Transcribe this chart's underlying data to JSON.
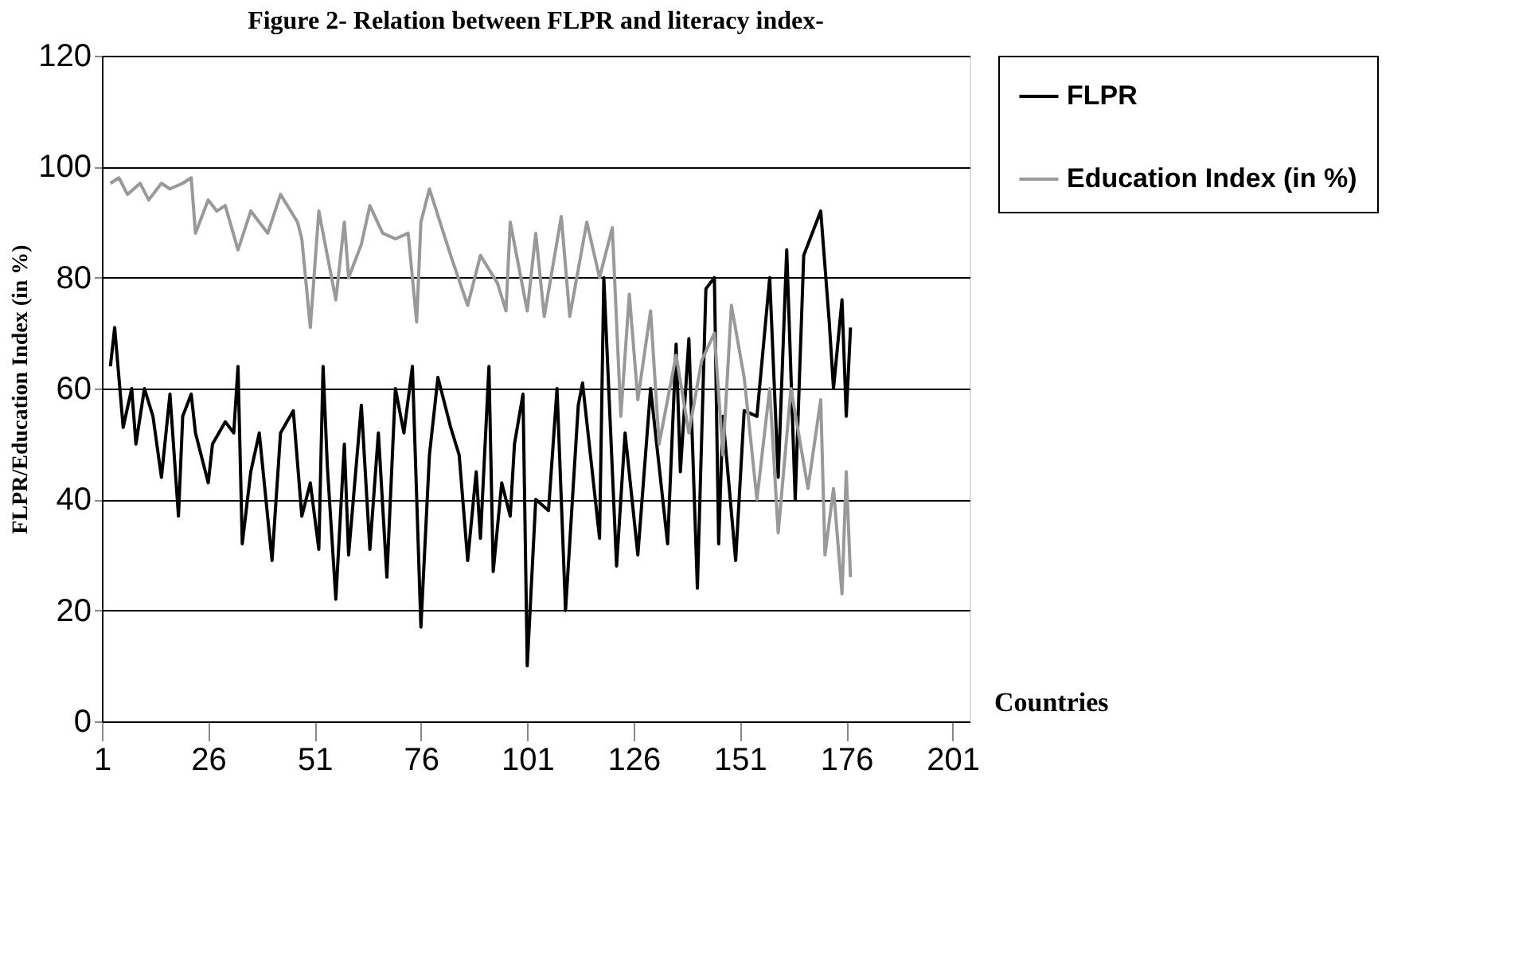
{
  "chart_data": {
    "type": "line",
    "title": "Figure 2- Relation between FLPR and literacy index-",
    "xlabel": "Countries",
    "ylabel": "FLPR/Education Index (in %)",
    "xlim": [
      1,
      205
    ],
    "xticks": [
      1,
      26,
      51,
      76,
      101,
      126,
      151,
      176,
      201
    ],
    "ylim": [
      0,
      120
    ],
    "yticks": [
      0,
      20,
      40,
      60,
      80,
      100,
      120
    ],
    "grid": "y",
    "legend": "right",
    "marker": "none",
    "line_style": "solid",
    "series": [
      {
        "name": "FLPR",
        "color": "#000000",
        "x": [
          3,
          4,
          6,
          8,
          9,
          11,
          13,
          15,
          17,
          19,
          20,
          22,
          23,
          26,
          27,
          30,
          32,
          33,
          34,
          36,
          38,
          41,
          43,
          46,
          48,
          50,
          52,
          53,
          54,
          56,
          58,
          59,
          62,
          64,
          66,
          68,
          70,
          72,
          74,
          76,
          78,
          80,
          83,
          85,
          87,
          89,
          90,
          92,
          93,
          95,
          97,
          98,
          100,
          101,
          103,
          106,
          108,
          110,
          113,
          114,
          118,
          119,
          122,
          124,
          127,
          130,
          134,
          136,
          137,
          139,
          141,
          143,
          145,
          146,
          147,
          150,
          152,
          155,
          158,
          160,
          162,
          164,
          166,
          170,
          172,
          173,
          175,
          176,
          177
        ],
        "values": [
          64,
          71,
          53,
          60,
          50,
          60,
          55,
          44,
          59,
          37,
          55,
          59,
          52,
          43,
          50,
          54,
          52,
          64,
          32,
          45,
          52,
          29,
          52,
          56,
          37,
          43,
          31,
          64,
          46,
          22,
          50,
          30,
          57,
          31,
          52,
          26,
          60,
          52,
          64,
          17,
          48,
          62,
          53,
          48,
          29,
          45,
          33,
          64,
          27,
          43,
          37,
          50,
          59,
          10,
          40,
          38,
          60,
          20,
          57,
          61,
          33,
          80,
          28,
          52,
          30,
          60,
          32,
          68,
          45,
          69,
          24,
          78,
          80,
          32,
          55,
          29,
          56,
          55,
          80,
          44,
          85,
          40,
          84,
          92,
          72,
          60,
          76,
          55,
          71
        ]
      },
      {
        "name": "Education Index (in %)",
        "color": "#999999",
        "x": [
          3,
          5,
          7,
          10,
          12,
          15,
          17,
          20,
          22,
          23,
          26,
          28,
          30,
          33,
          36,
          40,
          43,
          47,
          48,
          50,
          52,
          56,
          58,
          59,
          62,
          64,
          67,
          70,
          73,
          75,
          76,
          78,
          83,
          87,
          90,
          94,
          96,
          97,
          101,
          103,
          105,
          109,
          111,
          115,
          118,
          121,
          123,
          125,
          127,
          130,
          132,
          136,
          139,
          142,
          145,
          147,
          149,
          152,
          155,
          158,
          160,
          163,
          167,
          170,
          171,
          173,
          175,
          176,
          177
        ],
        "values": [
          97,
          98,
          95,
          97,
          94,
          97,
          96,
          97,
          98,
          88,
          94,
          92,
          93,
          85,
          92,
          88,
          95,
          90,
          87,
          71,
          92,
          76,
          90,
          80,
          86,
          93,
          88,
          87,
          88,
          72,
          90,
          96,
          84,
          75,
          84,
          79,
          74,
          90,
          74,
          88,
          73,
          91,
          73,
          90,
          80,
          89,
          55,
          77,
          58,
          74,
          50,
          66,
          52,
          65,
          70,
          48,
          75,
          62,
          40,
          60,
          34,
          60,
          42,
          58,
          30,
          42,
          23,
          45,
          26
        ]
      }
    ]
  }
}
